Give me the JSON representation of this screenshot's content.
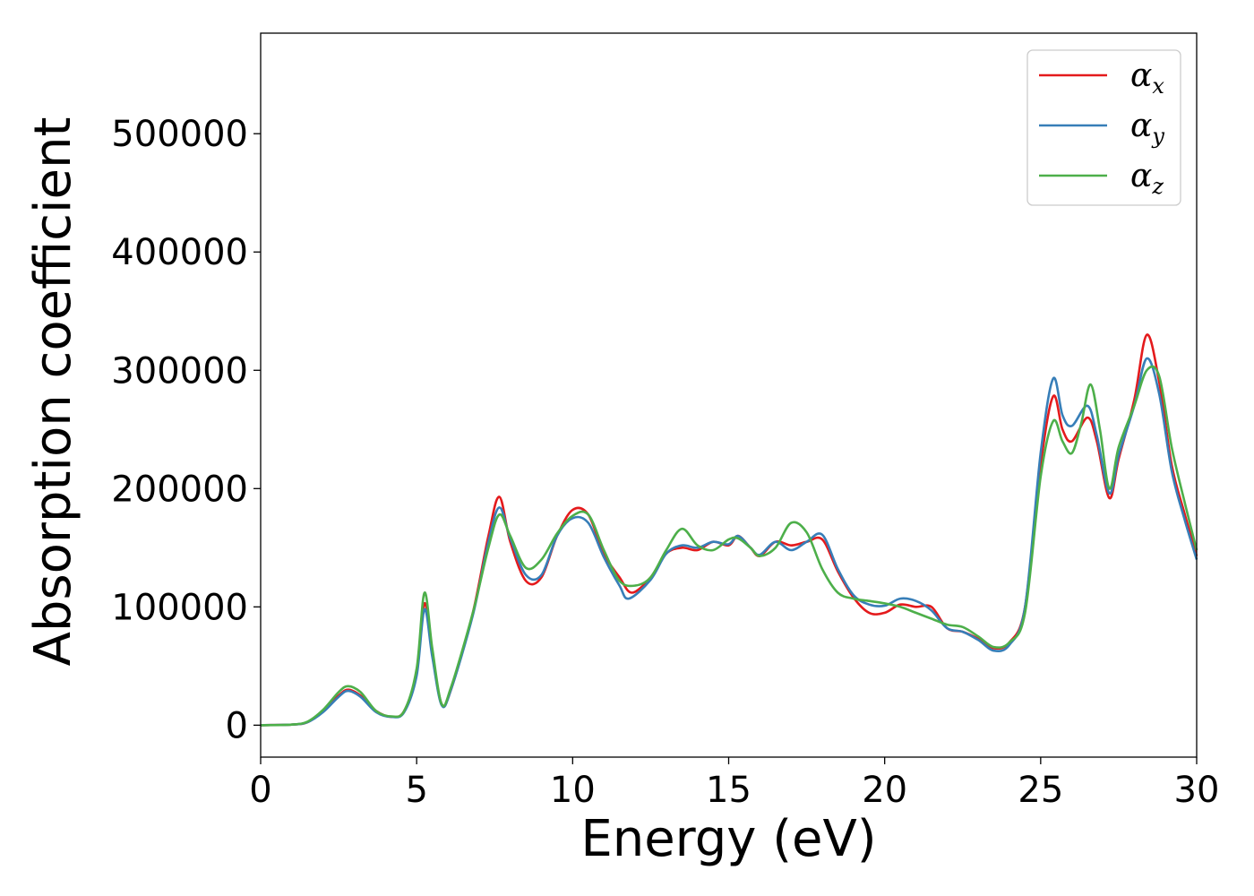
{
  "chart_data": {
    "type": "line",
    "title": "",
    "xlabel": "Energy (eV)",
    "ylabel": "Absorption coefficient",
    "xlim": [
      0,
      30
    ],
    "ylim": [
      -27000,
      585000
    ],
    "x_ticks": [
      0,
      5,
      10,
      15,
      20,
      25,
      30
    ],
    "y_ticks": [
      0,
      100000,
      200000,
      300000,
      400000,
      500000
    ],
    "grid": false,
    "legend_position": "top-right",
    "series": [
      {
        "name": "αx",
        "legend_base": "α",
        "legend_sub": "x",
        "color": "#e41a1c",
        "points": [
          [
            0,
            0
          ],
          [
            1,
            500
          ],
          [
            1.5,
            2500
          ],
          [
            2,
            12000
          ],
          [
            2.5,
            25000
          ],
          [
            2.8,
            30000
          ],
          [
            3.2,
            25000
          ],
          [
            3.7,
            12000
          ],
          [
            4.2,
            7000
          ],
          [
            4.6,
            12000
          ],
          [
            5,
            45000
          ],
          [
            5.25,
            103000
          ],
          [
            5.5,
            60000
          ],
          [
            5.8,
            18000
          ],
          [
            6.1,
            30000
          ],
          [
            6.8,
            95000
          ],
          [
            7.3,
            160000
          ],
          [
            7.65,
            193000
          ],
          [
            8,
            155000
          ],
          [
            8.5,
            122000
          ],
          [
            9,
            125000
          ],
          [
            9.5,
            160000
          ],
          [
            10,
            182000
          ],
          [
            10.5,
            178000
          ],
          [
            11,
            145000
          ],
          [
            11.5,
            125000
          ],
          [
            11.9,
            112000
          ],
          [
            12.5,
            125000
          ],
          [
            13,
            145000
          ],
          [
            13.5,
            150000
          ],
          [
            14,
            148000
          ],
          [
            14.5,
            155000
          ],
          [
            15,
            152000
          ],
          [
            15.3,
            160000
          ],
          [
            15.7,
            150000
          ],
          [
            16,
            143000
          ],
          [
            16.5,
            155000
          ],
          [
            17,
            152000
          ],
          [
            17.5,
            155000
          ],
          [
            18,
            157000
          ],
          [
            18.5,
            130000
          ],
          [
            19,
            108000
          ],
          [
            19.5,
            95000
          ],
          [
            20,
            95000
          ],
          [
            20.5,
            102000
          ],
          [
            21,
            100000
          ],
          [
            21.5,
            100000
          ],
          [
            22,
            82000
          ],
          [
            22.5,
            79000
          ],
          [
            23,
            73000
          ],
          [
            23.5,
            65000
          ],
          [
            24,
            70000
          ],
          [
            24.5,
            100000
          ],
          [
            25,
            220000
          ],
          [
            25.4,
            278000
          ],
          [
            25.7,
            250000
          ],
          [
            26,
            240000
          ],
          [
            26.5,
            260000
          ],
          [
            26.8,
            240000
          ],
          [
            27.2,
            192000
          ],
          [
            27.5,
            225000
          ],
          [
            28,
            275000
          ],
          [
            28.4,
            330000
          ],
          [
            28.8,
            290000
          ],
          [
            29.2,
            220000
          ],
          [
            29.6,
            180000
          ],
          [
            30,
            143000
          ]
        ]
      },
      {
        "name": "αy",
        "legend_base": "α",
        "legend_sub": "y",
        "color": "#377eb8",
        "points": [
          [
            0,
            0
          ],
          [
            1,
            500
          ],
          [
            1.5,
            2500
          ],
          [
            2,
            11000
          ],
          [
            2.5,
            24000
          ],
          [
            2.8,
            29000
          ],
          [
            3.2,
            24000
          ],
          [
            3.7,
            11000
          ],
          [
            4.2,
            7000
          ],
          [
            4.6,
            11000
          ],
          [
            5,
            42000
          ],
          [
            5.25,
            98000
          ],
          [
            5.5,
            58000
          ],
          [
            5.8,
            17000
          ],
          [
            6.1,
            30000
          ],
          [
            6.8,
            93000
          ],
          [
            7.3,
            155000
          ],
          [
            7.65,
            184000
          ],
          [
            8,
            158000
          ],
          [
            8.5,
            127000
          ],
          [
            9,
            127000
          ],
          [
            9.5,
            160000
          ],
          [
            10,
            175000
          ],
          [
            10.5,
            171000
          ],
          [
            11,
            142000
          ],
          [
            11.5,
            118000
          ],
          [
            11.8,
            107000
          ],
          [
            12.5,
            123000
          ],
          [
            13,
            145000
          ],
          [
            13.5,
            152000
          ],
          [
            14,
            150000
          ],
          [
            14.5,
            155000
          ],
          [
            15,
            153000
          ],
          [
            15.3,
            160000
          ],
          [
            15.7,
            150000
          ],
          [
            16,
            144000
          ],
          [
            16.5,
            155000
          ],
          [
            17,
            148000
          ],
          [
            17.5,
            155000
          ],
          [
            18,
            161000
          ],
          [
            18.5,
            132000
          ],
          [
            19,
            110000
          ],
          [
            19.5,
            102000
          ],
          [
            20,
            101000
          ],
          [
            20.5,
            107000
          ],
          [
            21,
            105000
          ],
          [
            21.5,
            97000
          ],
          [
            22,
            82000
          ],
          [
            22.5,
            79000
          ],
          [
            23,
            72000
          ],
          [
            23.5,
            63000
          ],
          [
            24,
            68000
          ],
          [
            24.5,
            100000
          ],
          [
            25,
            230000
          ],
          [
            25.4,
            293000
          ],
          [
            25.7,
            262000
          ],
          [
            26,
            253000
          ],
          [
            26.5,
            270000
          ],
          [
            26.8,
            245000
          ],
          [
            27.2,
            196000
          ],
          [
            27.5,
            228000
          ],
          [
            28,
            270000
          ],
          [
            28.4,
            310000
          ],
          [
            28.8,
            280000
          ],
          [
            29.2,
            215000
          ],
          [
            29.6,
            175000
          ],
          [
            30,
            140000
          ]
        ]
      },
      {
        "name": "αz",
        "legend_base": "α",
        "legend_sub": "z",
        "color": "#4daf4a",
        "points": [
          [
            0,
            0
          ],
          [
            1,
            500
          ],
          [
            1.5,
            3000
          ],
          [
            2,
            13000
          ],
          [
            2.5,
            28000
          ],
          [
            2.8,
            33000
          ],
          [
            3.2,
            28000
          ],
          [
            3.7,
            12000
          ],
          [
            4.2,
            7500
          ],
          [
            4.6,
            12000
          ],
          [
            5,
            48000
          ],
          [
            5.25,
            112000
          ],
          [
            5.5,
            65000
          ],
          [
            5.8,
            18000
          ],
          [
            6.1,
            32000
          ],
          [
            6.8,
            95000
          ],
          [
            7.3,
            150000
          ],
          [
            7.65,
            178000
          ],
          [
            8,
            160000
          ],
          [
            8.5,
            133000
          ],
          [
            9,
            140000
          ],
          [
            9.5,
            162000
          ],
          [
            10,
            177000
          ],
          [
            10.5,
            178000
          ],
          [
            11,
            148000
          ],
          [
            11.5,
            122000
          ],
          [
            12,
            118000
          ],
          [
            12.5,
            125000
          ],
          [
            13,
            148000
          ],
          [
            13.5,
            166000
          ],
          [
            14,
            152000
          ],
          [
            14.5,
            148000
          ],
          [
            15,
            157000
          ],
          [
            15.3,
            158000
          ],
          [
            15.7,
            150000
          ],
          [
            16,
            143000
          ],
          [
            16.5,
            150000
          ],
          [
            17,
            171000
          ],
          [
            17.5,
            163000
          ],
          [
            18,
            132000
          ],
          [
            18.5,
            112000
          ],
          [
            19,
            107000
          ],
          [
            19.5,
            105000
          ],
          [
            20,
            103000
          ],
          [
            20.5,
            100000
          ],
          [
            21,
            95000
          ],
          [
            21.5,
            90000
          ],
          [
            22,
            85000
          ],
          [
            22.5,
            83000
          ],
          [
            23,
            75000
          ],
          [
            23.5,
            66000
          ],
          [
            24,
            70000
          ],
          [
            24.5,
            95000
          ],
          [
            25,
            210000
          ],
          [
            25.4,
            257000
          ],
          [
            25.7,
            240000
          ],
          [
            26,
            230000
          ],
          [
            26.3,
            255000
          ],
          [
            26.6,
            288000
          ],
          [
            26.9,
            250000
          ],
          [
            27.2,
            200000
          ],
          [
            27.5,
            235000
          ],
          [
            28,
            270000
          ],
          [
            28.4,
            300000
          ],
          [
            28.8,
            295000
          ],
          [
            29.2,
            235000
          ],
          [
            29.6,
            190000
          ],
          [
            30,
            148000
          ]
        ]
      }
    ]
  }
}
